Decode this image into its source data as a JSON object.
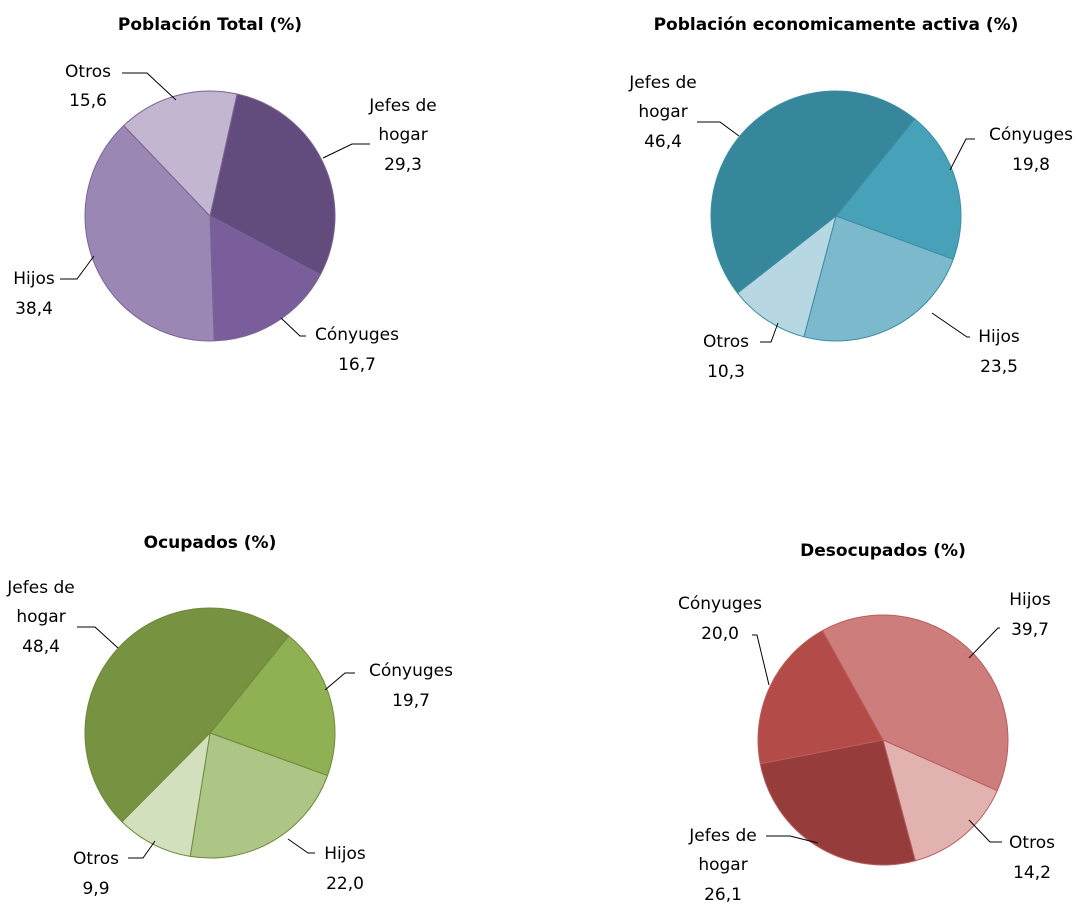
{
  "chart_data": [
    {
      "type": "pie",
      "title": "Población Total (%)",
      "slices": [
        {
          "label": "Jefes de hogar",
          "value": 29.3,
          "display": "29,3",
          "color": "#624c7e"
        },
        {
          "label": "Cónyuges",
          "value": 16.7,
          "display": "16,7",
          "color": "#7a5e9c"
        },
        {
          "label": "Hijos",
          "value": 38.4,
          "display": "38,4",
          "color": "#9a87b4"
        },
        {
          "label": "Otros",
          "value": 15.6,
          "display": "15,6",
          "color": "#c2b6d0"
        }
      ]
    },
    {
      "type": "pie",
      "title": "Población economicamente activa (%)",
      "slices": [
        {
          "label": "Cónyuges",
          "value": 19.8,
          "display": "19,8",
          "color": "#47a1b9"
        },
        {
          "label": "Hijos",
          "value": 23.5,
          "display": "23,5",
          "color": "#7cb9cd"
        },
        {
          "label": "Otros",
          "value": 10.3,
          "display": "10,3",
          "color": "#b7d8e3"
        },
        {
          "label": "Jefes de hogar",
          "value": 46.4,
          "display": "46,4",
          "color": "#37879c"
        }
      ]
    },
    {
      "type": "pie",
      "title": "Ocupados (%)",
      "slices": [
        {
          "label": "Cónyuges",
          "value": 19.7,
          "display": "19,7",
          "color": "#8fb053"
        },
        {
          "label": "Hijos",
          "value": 22.0,
          "display": "22,0",
          "color": "#adc686"
        },
        {
          "label": "Otros",
          "value": 9.9,
          "display": "9,9",
          "color": "#d3e0be"
        },
        {
          "label": "Jefes de hogar",
          "value": 48.4,
          "display": "48,4",
          "color": "#779241"
        }
      ]
    },
    {
      "type": "pie",
      "title": "Desocupados (%)",
      "slices": [
        {
          "label": "Hijos",
          "value": 39.7,
          "display": "39,7",
          "color": "#cd7e7c"
        },
        {
          "label": "Otros",
          "value": 14.2,
          "display": "14,2",
          "color": "#e2b2b1"
        },
        {
          "label": "Jefes de hogar",
          "value": 26.1,
          "display": "26,1",
          "color": "#963c3b"
        },
        {
          "label": "Cónyuges",
          "value": 20.0,
          "display": "20,0",
          "color": "#b34b48"
        }
      ]
    }
  ]
}
